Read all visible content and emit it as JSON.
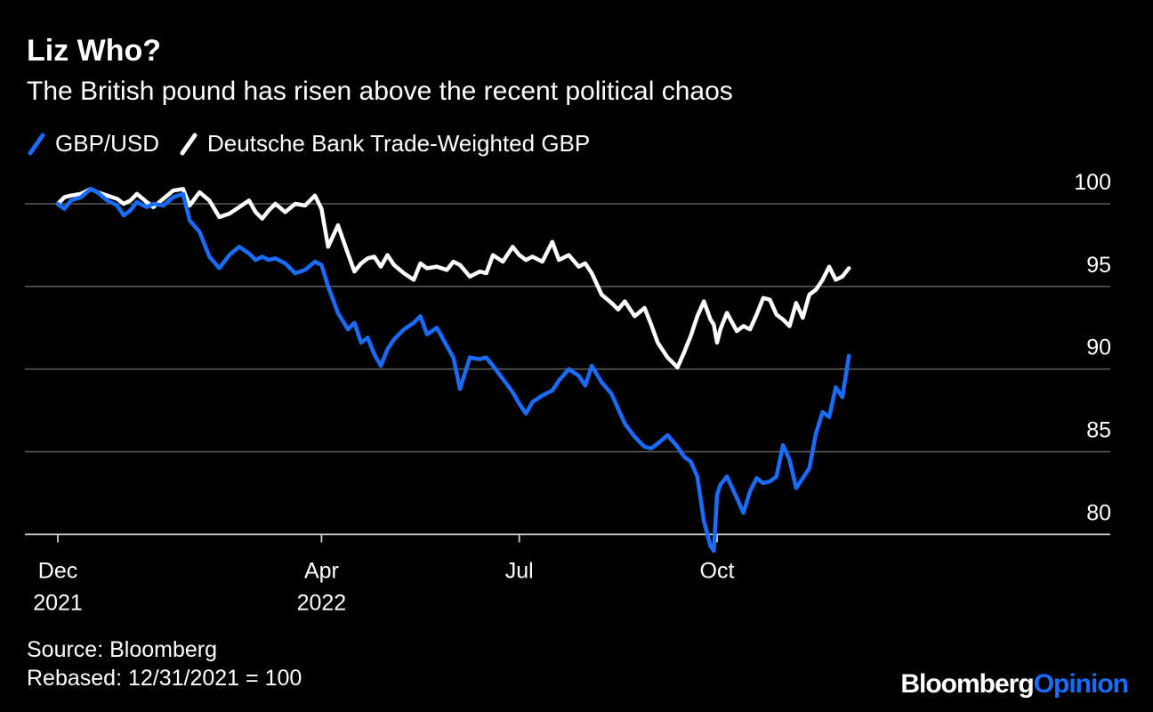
{
  "chart_data": {
    "type": "line",
    "title": "Liz Who?",
    "subtitle": "The British pound has risen above the recent political chaos",
    "xlabel": "",
    "ylabel": "",
    "ylim": [
      79,
      101
    ],
    "yticks": [
      100,
      95,
      90,
      85,
      80
    ],
    "x_range": [
      0,
      12.3
    ],
    "x_ticks": [
      {
        "pos": 0,
        "line1": "Dec",
        "line2": "2021"
      },
      {
        "pos": 4,
        "line1": "Apr",
        "line2": "2022"
      },
      {
        "pos": 7,
        "line1": "Jul",
        "line2": ""
      },
      {
        "pos": 10,
        "line1": "Oct",
        "line2": ""
      }
    ],
    "series": [
      {
        "name": "GBP/USD",
        "color": "#1a6cff",
        "x": [
          0,
          0.1,
          0.2,
          0.35,
          0.5,
          0.6,
          0.75,
          0.9,
          1.0,
          1.1,
          1.2,
          1.35,
          1.45,
          1.6,
          1.75,
          1.9,
          2.0,
          2.15,
          2.3,
          2.45,
          2.6,
          2.75,
          2.9,
          3.0,
          3.1,
          3.2,
          3.3,
          3.45,
          3.6,
          3.75,
          3.9,
          4.0,
          4.1,
          4.25,
          4.4,
          4.5,
          4.6,
          4.7,
          4.8,
          4.9,
          5.0,
          5.1,
          5.25,
          5.4,
          5.5,
          5.6,
          5.75,
          5.9,
          6.0,
          6.1,
          6.25,
          6.4,
          6.5,
          6.6,
          6.75,
          6.9,
          7.0,
          7.1,
          7.2,
          7.35,
          7.5,
          7.6,
          7.75,
          7.9,
          8.0,
          8.1,
          8.25,
          8.4,
          8.5,
          8.6,
          8.75,
          8.9,
          9.0,
          9.1,
          9.25,
          9.4,
          9.5,
          9.6,
          9.7,
          9.8,
          9.9,
          9.95,
          10.0,
          10.05,
          10.15,
          10.3,
          10.4,
          10.5,
          10.6,
          10.7,
          10.8,
          10.9,
          11.0,
          11.1,
          11.2,
          11.3,
          11.4,
          11.5,
          11.6,
          11.7,
          11.8,
          11.9,
          12.0
        ],
        "values": [
          100,
          99.7,
          100.2,
          100.4,
          100.9,
          100.7,
          100.2,
          99.9,
          99.3,
          99.6,
          100.1,
          99.8,
          100.0,
          99.9,
          100.4,
          100.6,
          99.0,
          98.3,
          96.8,
          96.1,
          96.9,
          97.4,
          97.0,
          96.6,
          96.8,
          96.6,
          96.7,
          96.4,
          95.8,
          96.0,
          96.5,
          96.3,
          95.0,
          93.4,
          92.4,
          92.8,
          91.6,
          91.9,
          90.9,
          90.2,
          91.2,
          91.8,
          92.4,
          92.8,
          93.2,
          92.1,
          92.5,
          91.4,
          90.7,
          88.8,
          90.7,
          90.6,
          90.7,
          90.2,
          89.4,
          88.6,
          87.9,
          87.3,
          88.0,
          88.4,
          88.7,
          89.3,
          90.0,
          89.6,
          89.0,
          90.2,
          89.2,
          88.5,
          87.6,
          86.7,
          85.9,
          85.3,
          85.2,
          85.5,
          86.0,
          85.3,
          84.7,
          84.4,
          83.5,
          80.8,
          79.3,
          79.0,
          82.4,
          83.0,
          83.5,
          82.2,
          81.3,
          82.6,
          83.4,
          83.1,
          83.2,
          83.5,
          85.4,
          84.5,
          82.8,
          83.4,
          84.0,
          86.1,
          87.4,
          87.1,
          88.9,
          88.3,
          90.8
        ]
      },
      {
        "name": "Deutsche Bank Trade-Weighted GBP",
        "color": "#ffffff",
        "x": [
          0,
          0.1,
          0.2,
          0.35,
          0.5,
          0.6,
          0.75,
          0.9,
          1.0,
          1.1,
          1.2,
          1.35,
          1.45,
          1.6,
          1.75,
          1.9,
          2.0,
          2.15,
          2.3,
          2.45,
          2.6,
          2.75,
          2.9,
          3.0,
          3.1,
          3.2,
          3.3,
          3.45,
          3.6,
          3.75,
          3.9,
          4.0,
          4.1,
          4.25,
          4.4,
          4.5,
          4.6,
          4.7,
          4.8,
          4.9,
          5.0,
          5.1,
          5.25,
          5.4,
          5.5,
          5.6,
          5.75,
          5.9,
          6.0,
          6.1,
          6.25,
          6.4,
          6.5,
          6.6,
          6.75,
          6.9,
          7.0,
          7.1,
          7.2,
          7.35,
          7.5,
          7.6,
          7.75,
          7.9,
          8.0,
          8.1,
          8.25,
          8.4,
          8.5,
          8.6,
          8.75,
          8.9,
          9.0,
          9.1,
          9.25,
          9.4,
          9.5,
          9.6,
          9.7,
          9.8,
          9.9,
          9.95,
          10.0,
          10.05,
          10.15,
          10.3,
          10.4,
          10.5,
          10.6,
          10.7,
          10.8,
          10.9,
          11.0,
          11.1,
          11.2,
          11.3,
          11.4,
          11.5,
          11.6,
          11.7,
          11.8,
          11.9,
          12.0
        ],
        "values": [
          100,
          100.4,
          100.5,
          100.6,
          100.9,
          100.7,
          100.5,
          100.3,
          100.0,
          100.2,
          100.6,
          100.1,
          99.8,
          100.3,
          100.8,
          100.9,
          99.9,
          100.7,
          100.2,
          99.2,
          99.4,
          99.8,
          100.2,
          99.5,
          99.1,
          99.6,
          100.0,
          99.5,
          100.0,
          99.9,
          100.5,
          99.7,
          97.4,
          98.7,
          97.0,
          95.9,
          96.4,
          96.7,
          96.8,
          96.2,
          96.9,
          96.3,
          95.8,
          95.4,
          96.4,
          96.1,
          96.2,
          96.0,
          96.5,
          96.3,
          95.6,
          95.9,
          95.8,
          96.9,
          96.5,
          97.4,
          96.9,
          96.6,
          96.8,
          96.5,
          97.7,
          96.6,
          96.9,
          96.2,
          96.4,
          95.8,
          94.5,
          94.0,
          93.6,
          94.1,
          93.2,
          93.7,
          92.7,
          91.6,
          90.7,
          90.1,
          91.0,
          92.0,
          93.2,
          94.1,
          93.0,
          92.7,
          91.6,
          92.4,
          93.4,
          92.3,
          92.6,
          92.4,
          93.3,
          94.3,
          94.2,
          93.3,
          93.0,
          92.6,
          94.0,
          93.1,
          94.5,
          94.8,
          95.4,
          96.2,
          95.4,
          95.6,
          96.1
        ]
      }
    ]
  },
  "footer": {
    "source": "Source: Bloomberg",
    "note": "Rebased: 12/31/2021 = 100"
  },
  "brand": {
    "part1": "Bloomberg",
    "part2": "Opinion"
  }
}
